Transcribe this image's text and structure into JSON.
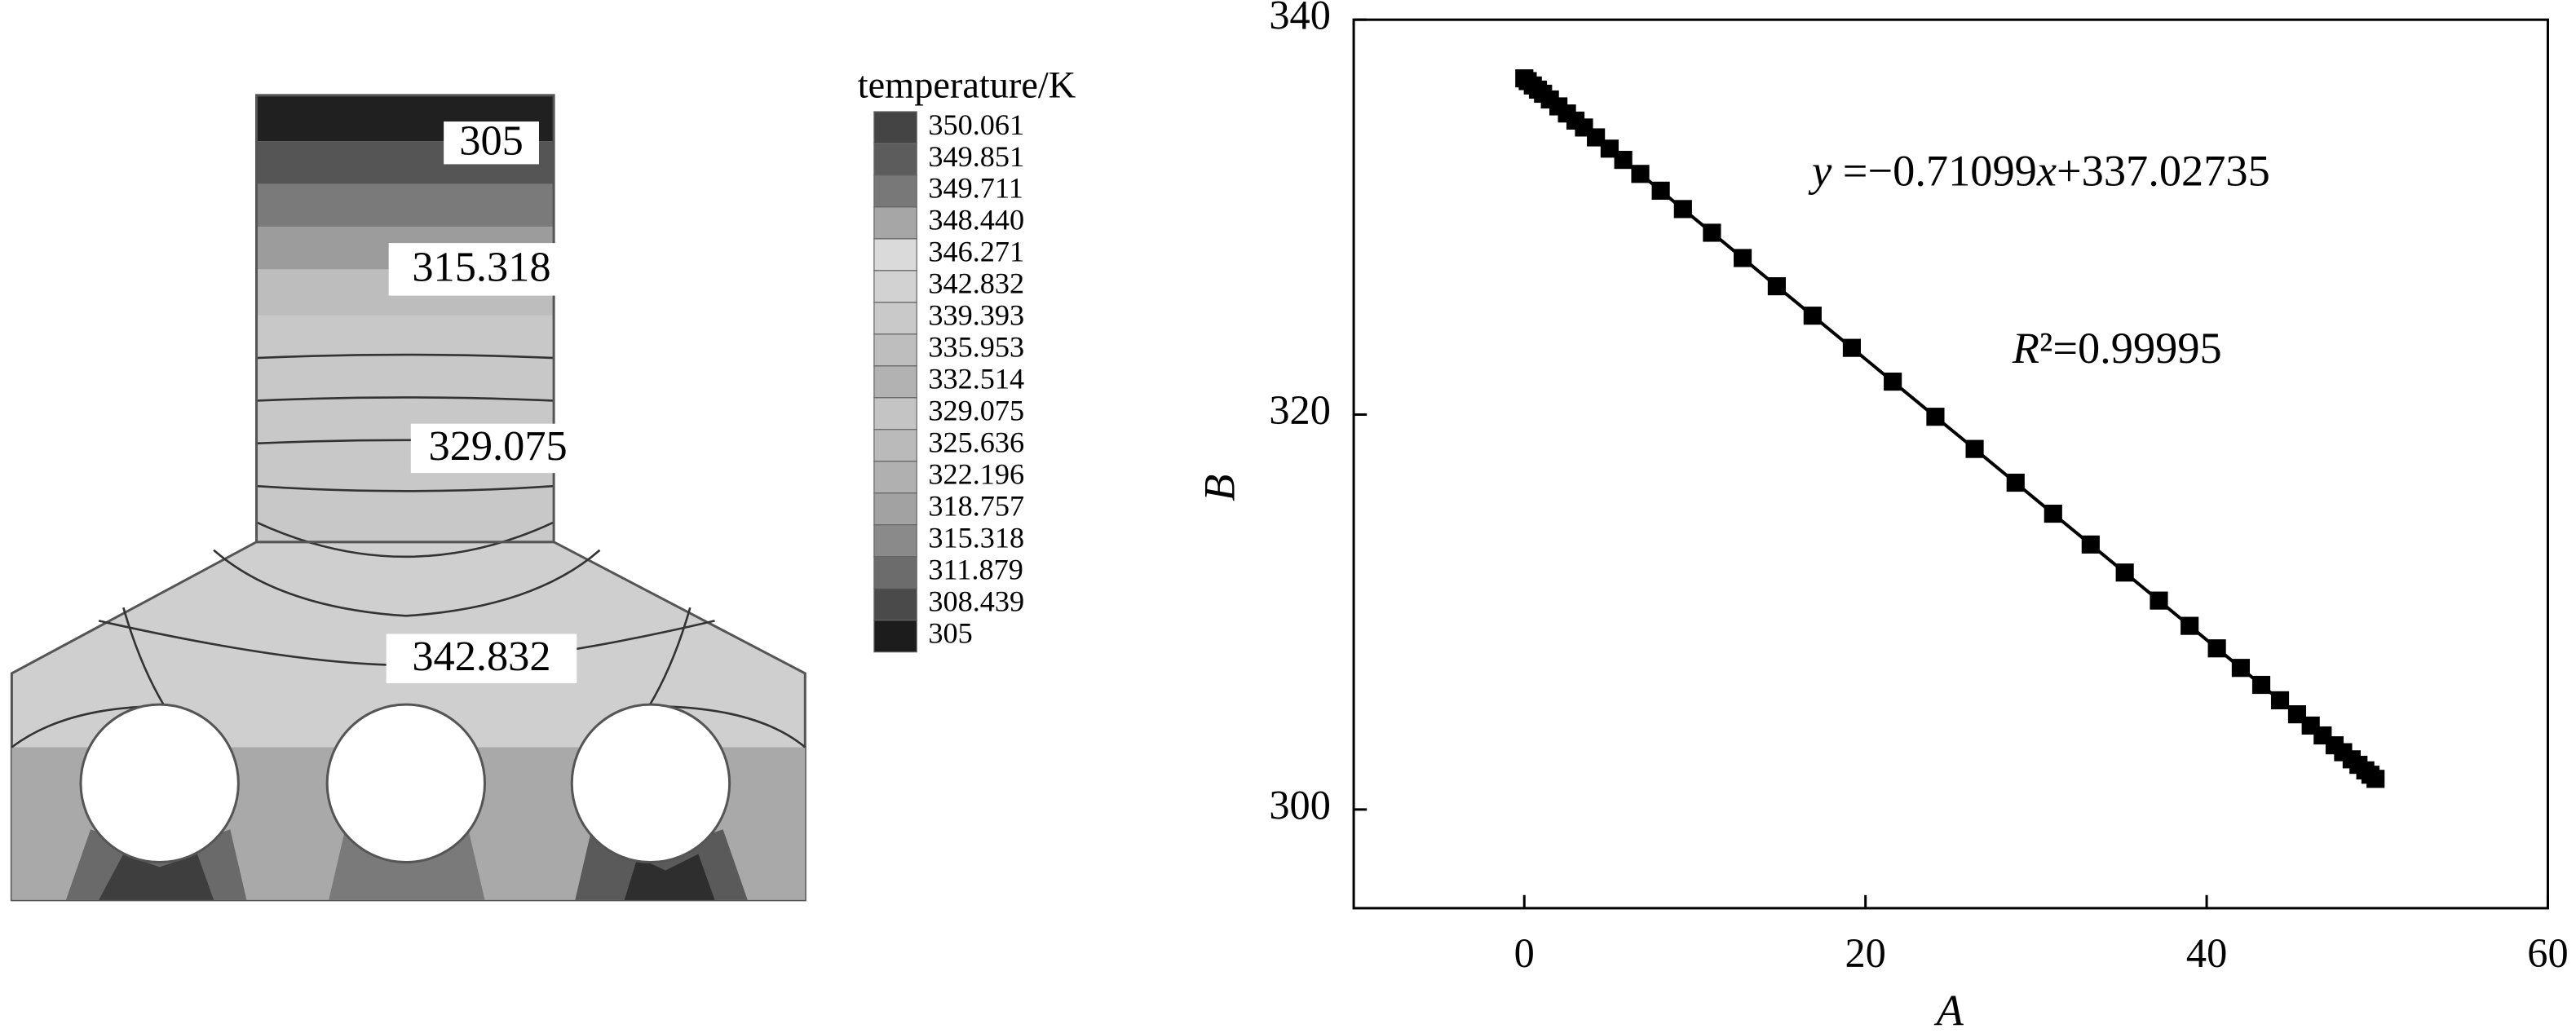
{
  "chart_data": [
    {
      "type": "contour",
      "legend_title": "temperature/K",
      "levels": [
        350.061,
        349.851,
        349.711,
        {
          "value": 348.44,
          "label": "348.440"
        },
        346.271,
        342.832,
        339.393,
        335.953,
        332.514,
        329.075,
        325.636,
        322.196,
        318.757,
        315.318,
        311.879,
        308.439,
        305
      ],
      "colors": [
        "#444444",
        "#5c5c5c",
        "#787878",
        "#a6a6a6",
        "#dadada",
        "#d2d2d2",
        "#c9c9c9",
        "#bebebe",
        "#b2b2b2",
        "#c4c4c4",
        "#bababa",
        "#b0b0b0",
        "#a2a2a2",
        "#8a8a8a",
        "#6c6c6c",
        "#4a4a4a",
        "#1c1c1c"
      ],
      "contour_labels": [
        305,
        315.318,
        329.075,
        342.832
      ]
    },
    {
      "type": "scatter",
      "equation": [
        "y",
        " =−0.71099",
        "x",
        "+337.02735"
      ],
      "r_squared": [
        "R",
        "²=0.99995"
      ],
      "x_label": "A",
      "y_label": "B",
      "xlim": [
        -10,
        60
      ],
      "xticks": [
        0,
        20,
        40,
        60
      ],
      "ylim": [
        295,
        340
      ],
      "yticks": [
        300,
        320,
        340
      ],
      "x": [
        0,
        0.2,
        0.5,
        0.8,
        1.1,
        1.5,
        2,
        2.5,
        3,
        3.5,
        4.2,
        5,
        5.8,
        6.8,
        8,
        9.3,
        11,
        12.8,
        14.8,
        16.9,
        19.2,
        21.6,
        24.1,
        26.4,
        28.8,
        31,
        33.2,
        35.2,
        37.2,
        39,
        40.6,
        42,
        43.2,
        44.3,
        45.3,
        46.1,
        46.8,
        47.5,
        48,
        48.5,
        48.9,
        49.3,
        49.6,
        49.9
      ],
      "series": [
        {
          "color": "#000000",
          "values": [
            337.03,
            336.89,
            336.67,
            336.46,
            336.25,
            335.96,
            335.61,
            335.25,
            334.89,
            334.54,
            334.04,
            333.47,
            332.9,
            332.19,
            331.34,
            330.41,
            329.21,
            327.93,
            326.5,
            325.01,
            323.38,
            321.67,
            319.89,
            318.26,
            316.55,
            314.98,
            313.42,
            312.0,
            310.58,
            309.3,
            308.16,
            307.17,
            306.31,
            305.53,
            304.82,
            304.25,
            303.75,
            303.25,
            302.9,
            302.54,
            302.26,
            301.98,
            301.76,
            301.55
          ]
        }
      ]
    }
  ]
}
